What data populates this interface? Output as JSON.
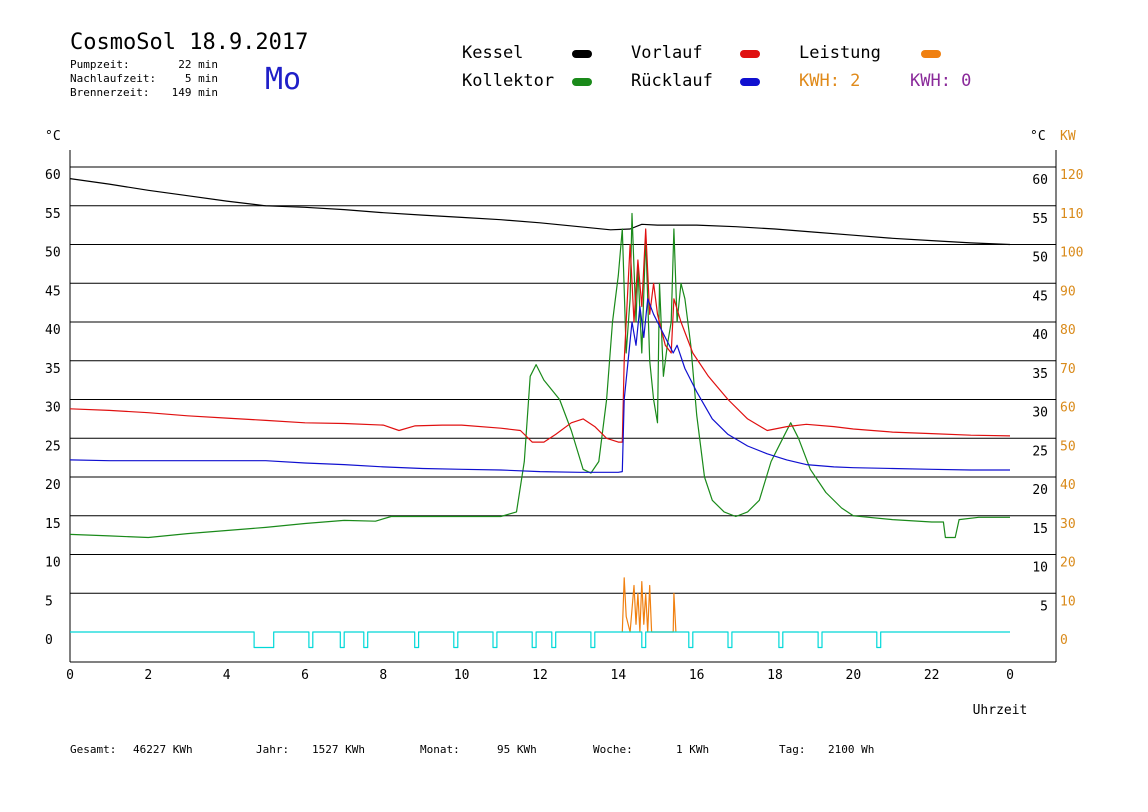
{
  "header": {
    "title": "CosmoSol 18.9.2017",
    "day": "Mo",
    "stats": [
      {
        "label": "Pumpzeit:",
        "value": "22 min"
      },
      {
        "label": "Nachlaufzeit:",
        "value": "5 min"
      },
      {
        "label": "Brennerzeit:",
        "value": "149 min"
      }
    ]
  },
  "legend": {
    "kessel": {
      "label": "Kessel",
      "color": "#000000"
    },
    "kollektor": {
      "label": "Kollektor",
      "color": "#1a8a1a"
    },
    "vorlauf": {
      "label": "Vorlauf",
      "color": "#e01010"
    },
    "ruecklauf": {
      "label": "Rücklauf",
      "color": "#1010d0"
    },
    "leistung": {
      "label": "Leistung",
      "color": "#f08010"
    },
    "kwh1": {
      "label": "KWH: 2",
      "color": "#e08a1a"
    },
    "kwh2": {
      "label": "KWH: 0",
      "color": "#8a2a9a"
    }
  },
  "footer": [
    {
      "label": "Gesamt:",
      "value": "46227 KWh"
    },
    {
      "label": "Jahr:",
      "value": "1527 KWh"
    },
    {
      "label": "Monat:",
      "value": "95 KWh"
    },
    {
      "label": "Woche:",
      "value": "1 KWh"
    },
    {
      "label": "Tag:",
      "value": "2100 Wh"
    }
  ],
  "chart_data": {
    "type": "line",
    "xlabel": "Uhrzeit",
    "ylabel_left": "°C",
    "ylabel_right_c": "°C",
    "ylabel_right_kw": "KW",
    "xlim": [
      0,
      24
    ],
    "ylim": [
      0,
      60
    ],
    "ylim_kw": [
      0,
      120
    ],
    "x_ticks": [
      "0",
      "2",
      "4",
      "6",
      "8",
      "10",
      "12",
      "14",
      "16",
      "18",
      "20",
      "22",
      "0"
    ],
    "y_ticks": [
      0,
      5,
      10,
      15,
      20,
      25,
      30,
      35,
      40,
      45,
      50,
      55,
      60
    ],
    "y_ticks_kw": [
      0,
      10,
      20,
      30,
      40,
      50,
      60,
      70,
      80,
      90,
      100,
      110,
      120
    ],
    "grid": "horizontal",
    "series": [
      {
        "name": "Kessel",
        "color": "#000000",
        "points": [
          [
            0,
            58.5
          ],
          [
            1,
            57.8
          ],
          [
            2,
            57.0
          ],
          [
            3,
            56.3
          ],
          [
            4,
            55.6
          ],
          [
            5,
            55.0
          ],
          [
            6,
            54.8
          ],
          [
            7,
            54.5
          ],
          [
            8,
            54.1
          ],
          [
            9,
            53.8
          ],
          [
            10,
            53.5
          ],
          [
            11,
            53.2
          ],
          [
            12,
            52.8
          ],
          [
            13,
            52.3
          ],
          [
            13.8,
            51.9
          ],
          [
            14.3,
            52.0
          ],
          [
            14.6,
            52.6
          ],
          [
            15,
            52.5
          ],
          [
            16,
            52.5
          ],
          [
            17,
            52.3
          ],
          [
            18,
            52.0
          ],
          [
            19,
            51.6
          ],
          [
            20,
            51.2
          ],
          [
            21,
            50.8
          ],
          [
            22,
            50.5
          ],
          [
            23,
            50.2
          ],
          [
            24,
            50.0
          ]
        ]
      },
      {
        "name": "Kollektor",
        "color": "#1a8a1a",
        "points": [
          [
            0,
            12.6
          ],
          [
            1,
            12.4
          ],
          [
            2,
            12.2
          ],
          [
            3,
            12.7
          ],
          [
            4,
            13.1
          ],
          [
            5,
            13.5
          ],
          [
            6,
            14.0
          ],
          [
            7,
            14.4
          ],
          [
            7.8,
            14.3
          ],
          [
            8.2,
            14.9
          ],
          [
            9,
            14.9
          ],
          [
            10,
            14.9
          ],
          [
            11,
            14.9
          ],
          [
            11.4,
            15.5
          ],
          [
            11.6,
            22
          ],
          [
            11.75,
            33
          ],
          [
            11.9,
            34.5
          ],
          [
            12.1,
            32.5
          ],
          [
            12.5,
            30
          ],
          [
            12.8,
            26
          ],
          [
            13.1,
            21
          ],
          [
            13.3,
            20.5
          ],
          [
            13.5,
            22
          ],
          [
            13.7,
            30
          ],
          [
            13.85,
            40
          ],
          [
            14.0,
            46
          ],
          [
            14.1,
            52
          ],
          [
            14.2,
            36
          ],
          [
            14.3,
            43
          ],
          [
            14.35,
            54
          ],
          [
            14.45,
            40
          ],
          [
            14.5,
            47
          ],
          [
            14.6,
            36
          ],
          [
            14.7,
            51
          ],
          [
            14.8,
            35
          ],
          [
            14.9,
            30
          ],
          [
            15.0,
            27
          ],
          [
            15.05,
            45
          ],
          [
            15.15,
            33
          ],
          [
            15.25,
            37
          ],
          [
            15.35,
            40
          ],
          [
            15.42,
            52
          ],
          [
            15.5,
            40
          ],
          [
            15.6,
            45
          ],
          [
            15.7,
            43
          ],
          [
            15.85,
            37
          ],
          [
            16.0,
            28
          ],
          [
            16.2,
            20
          ],
          [
            16.4,
            17
          ],
          [
            16.7,
            15.5
          ],
          [
            17,
            14.9
          ],
          [
            17.3,
            15.5
          ],
          [
            17.6,
            17
          ],
          [
            17.9,
            22
          ],
          [
            18.2,
            25
          ],
          [
            18.4,
            27
          ],
          [
            18.6,
            25
          ],
          [
            18.9,
            21
          ],
          [
            19.3,
            18
          ],
          [
            19.7,
            16
          ],
          [
            20,
            15
          ],
          [
            21,
            14.5
          ],
          [
            22,
            14.2
          ],
          [
            22.3,
            14.2
          ],
          [
            22.35,
            12.2
          ],
          [
            22.6,
            12.2
          ],
          [
            22.7,
            14.5
          ],
          [
            23.2,
            14.8
          ],
          [
            24,
            14.8
          ]
        ]
      },
      {
        "name": "Vorlauf",
        "color": "#e01010",
        "points": [
          [
            0,
            28.8
          ],
          [
            1,
            28.6
          ],
          [
            2,
            28.3
          ],
          [
            3,
            27.9
          ],
          [
            4,
            27.6
          ],
          [
            5,
            27.3
          ],
          [
            6,
            27.0
          ],
          [
            7,
            26.9
          ],
          [
            8,
            26.7
          ],
          [
            8.4,
            26.0
          ],
          [
            8.8,
            26.6
          ],
          [
            9.5,
            26.7
          ],
          [
            10,
            26.7
          ],
          [
            11,
            26.3
          ],
          [
            11.5,
            26.0
          ],
          [
            11.8,
            24.5
          ],
          [
            12.1,
            24.5
          ],
          [
            12.4,
            25.5
          ],
          [
            12.8,
            27
          ],
          [
            13.1,
            27.5
          ],
          [
            13.4,
            26.5
          ],
          [
            13.7,
            25
          ],
          [
            14.0,
            24.5
          ],
          [
            14.1,
            24.5
          ],
          [
            14.15,
            35
          ],
          [
            14.3,
            50
          ],
          [
            14.4,
            40
          ],
          [
            14.5,
            48
          ],
          [
            14.6,
            42
          ],
          [
            14.7,
            52
          ],
          [
            14.8,
            41
          ],
          [
            14.9,
            45
          ],
          [
            15.0,
            41
          ],
          [
            15.2,
            37
          ],
          [
            15.35,
            36
          ],
          [
            15.42,
            43
          ],
          [
            15.6,
            40
          ],
          [
            15.9,
            36
          ],
          [
            16.3,
            33
          ],
          [
            16.8,
            30
          ],
          [
            17.3,
            27.5
          ],
          [
            17.8,
            26
          ],
          [
            18.3,
            26.5
          ],
          [
            18.8,
            26.8
          ],
          [
            19.5,
            26.5
          ],
          [
            20,
            26.2
          ],
          [
            21,
            25.8
          ],
          [
            22,
            25.6
          ],
          [
            23,
            25.4
          ],
          [
            24,
            25.3
          ]
        ]
      },
      {
        "name": "Rücklauf",
        "color": "#1010d0",
        "points": [
          [
            0,
            22.2
          ],
          [
            1,
            22.1
          ],
          [
            2,
            22.1
          ],
          [
            3,
            22.1
          ],
          [
            4,
            22.1
          ],
          [
            5,
            22.1
          ],
          [
            6,
            21.8
          ],
          [
            7,
            21.6
          ],
          [
            8,
            21.3
          ],
          [
            9,
            21.1
          ],
          [
            10,
            21.0
          ],
          [
            11,
            20.9
          ],
          [
            12,
            20.7
          ],
          [
            13,
            20.6
          ],
          [
            14.0,
            20.6
          ],
          [
            14.1,
            20.7
          ],
          [
            14.15,
            30
          ],
          [
            14.25,
            35
          ],
          [
            14.35,
            40
          ],
          [
            14.45,
            37
          ],
          [
            14.55,
            42
          ],
          [
            14.65,
            38
          ],
          [
            14.75,
            43
          ],
          [
            14.9,
            41
          ],
          [
            15.2,
            38
          ],
          [
            15.4,
            36
          ],
          [
            15.5,
            37
          ],
          [
            15.7,
            34
          ],
          [
            16.0,
            31
          ],
          [
            16.4,
            27.5
          ],
          [
            16.8,
            25.5
          ],
          [
            17.3,
            24
          ],
          [
            17.8,
            23
          ],
          [
            18.3,
            22.2
          ],
          [
            18.8,
            21.6
          ],
          [
            19.5,
            21.3
          ],
          [
            20,
            21.2
          ],
          [
            21,
            21.1
          ],
          [
            22,
            21.0
          ],
          [
            23,
            20.9
          ],
          [
            24,
            20.9
          ]
        ]
      },
      {
        "name": "Leistung",
        "color": "#f08010",
        "points": [
          [
            14.1,
            0
          ],
          [
            14.15,
            7
          ],
          [
            14.2,
            2
          ],
          [
            14.3,
            0
          ],
          [
            14.4,
            6
          ],
          [
            14.45,
            1
          ],
          [
            14.5,
            5
          ],
          [
            14.55,
            0
          ],
          [
            14.6,
            6.5
          ],
          [
            14.65,
            1
          ],
          [
            14.7,
            5
          ],
          [
            14.75,
            0
          ],
          [
            14.8,
            6
          ],
          [
            14.85,
            0
          ],
          [
            15.4,
            0
          ],
          [
            15.42,
            5
          ],
          [
            15.47,
            0
          ]
        ]
      },
      {
        "name": "Pumpe",
        "color": "#00d8d8",
        "points": [
          [
            0,
            0
          ],
          [
            4.7,
            0
          ],
          [
            4.7,
            -2
          ],
          [
            5.2,
            -2
          ],
          [
            5.2,
            0
          ],
          [
            6.1,
            0
          ],
          [
            6.1,
            -2
          ],
          [
            6.2,
            -2
          ],
          [
            6.2,
            0
          ],
          [
            6.9,
            0
          ],
          [
            6.9,
            -2
          ],
          [
            7.0,
            -2
          ],
          [
            7.0,
            0
          ],
          [
            7.5,
            0
          ],
          [
            7.5,
            -2
          ],
          [
            7.6,
            -2
          ],
          [
            7.6,
            0
          ],
          [
            8.8,
            0
          ],
          [
            8.8,
            -2
          ],
          [
            8.9,
            -2
          ],
          [
            8.9,
            0
          ],
          [
            9.8,
            0
          ],
          [
            9.8,
            -2
          ],
          [
            9.9,
            -2
          ],
          [
            9.9,
            0
          ],
          [
            10.8,
            0
          ],
          [
            10.8,
            -2
          ],
          [
            10.9,
            -2
          ],
          [
            10.9,
            0
          ],
          [
            11.8,
            0
          ],
          [
            11.8,
            -2
          ],
          [
            11.9,
            -2
          ],
          [
            11.9,
            0
          ],
          [
            12.3,
            0
          ],
          [
            12.3,
            -2
          ],
          [
            12.4,
            -2
          ],
          [
            12.4,
            0
          ],
          [
            13.3,
            0
          ],
          [
            13.3,
            -2
          ],
          [
            13.4,
            -2
          ],
          [
            13.4,
            0
          ],
          [
            14.6,
            0
          ],
          [
            14.6,
            -2
          ],
          [
            14.7,
            -2
          ],
          [
            14.7,
            0
          ],
          [
            15.8,
            0
          ],
          [
            15.8,
            -2
          ],
          [
            15.9,
            -2
          ],
          [
            15.9,
            0
          ],
          [
            16.8,
            0
          ],
          [
            16.8,
            -2
          ],
          [
            16.9,
            -2
          ],
          [
            16.9,
            0
          ],
          [
            18.1,
            0
          ],
          [
            18.1,
            -2
          ],
          [
            18.2,
            -2
          ],
          [
            18.2,
            0
          ],
          [
            19.1,
            0
          ],
          [
            19.1,
            -2
          ],
          [
            19.2,
            -2
          ],
          [
            19.2,
            0
          ],
          [
            20.6,
            0
          ],
          [
            20.6,
            -2
          ],
          [
            20.7,
            -2
          ],
          [
            20.7,
            0
          ],
          [
            24,
            0
          ]
        ]
      }
    ]
  }
}
